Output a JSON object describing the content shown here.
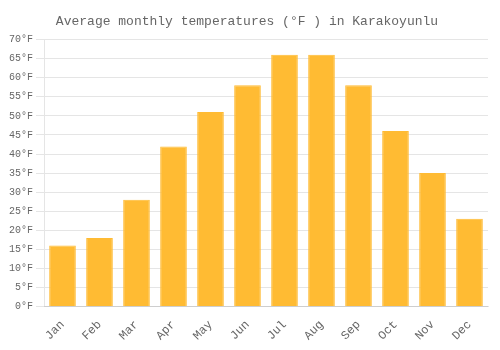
{
  "chart_data": {
    "type": "bar",
    "title": "Average monthly temperatures (°F ) in Karakoyunlu",
    "categories": [
      "Jan",
      "Feb",
      "Mar",
      "Apr",
      "May",
      "Jun",
      "Jul",
      "Aug",
      "Sep",
      "Oct",
      "Nov",
      "Dec"
    ],
    "values": [
      16,
      18,
      28,
      42,
      51,
      58,
      66,
      66,
      58,
      46,
      35,
      23
    ],
    "color": "#FFBB33",
    "ylim": [
      0,
      70
    ],
    "yticks": [
      {
        "value": 0,
        "label": "0°F"
      },
      {
        "value": 5,
        "label": "5°F"
      },
      {
        "value": 10,
        "label": "10°F"
      },
      {
        "value": 15,
        "label": "15°F"
      },
      {
        "value": 20,
        "label": "20°F"
      },
      {
        "value": 25,
        "label": "25°F"
      },
      {
        "value": 30,
        "label": "30°F"
      },
      {
        "value": 35,
        "label": "35°F"
      },
      {
        "value": 40,
        "label": "40°F"
      },
      {
        "value": 45,
        "label": "45°F"
      },
      {
        "value": 50,
        "label": "50°F"
      },
      {
        "value": 55,
        "label": "55°F"
      },
      {
        "value": 60,
        "label": "60°F"
      },
      {
        "value": 65,
        "label": "65°F"
      },
      {
        "value": 70,
        "label": "70°F"
      }
    ],
    "grid": true
  }
}
